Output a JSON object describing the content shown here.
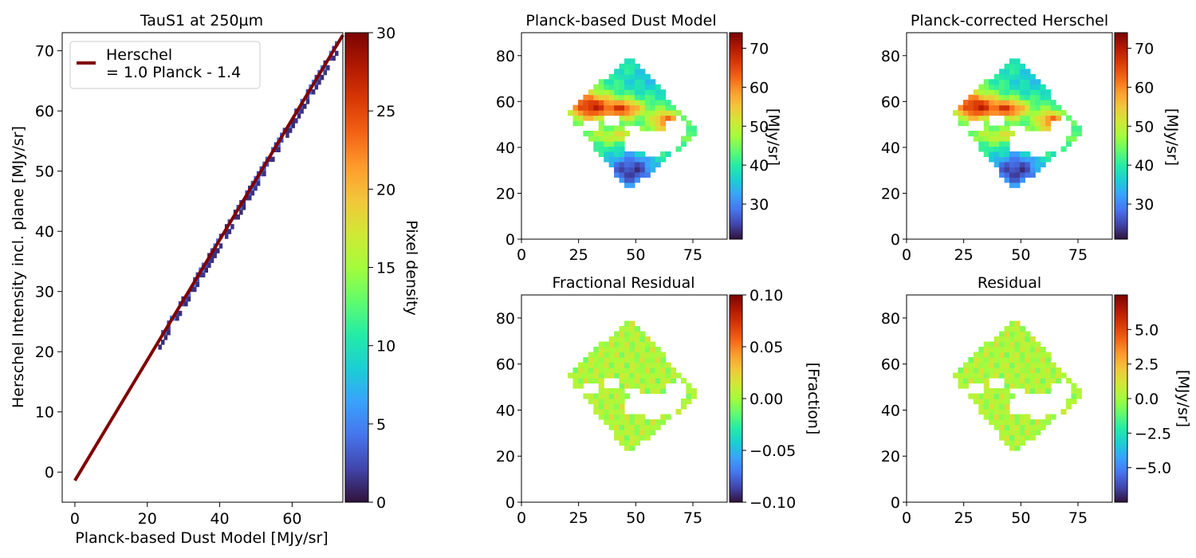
{
  "colors": {
    "fit_line": "#800000",
    "turbo": [
      "#30123b",
      "#4145ab",
      "#4675ed",
      "#39a2fc",
      "#1bcfd4",
      "#24eca6",
      "#61fc6c",
      "#a4fc3b",
      "#d1e834",
      "#f3c63a",
      "#fe9b2d",
      "#f36315",
      "#d93806",
      "#b11901",
      "#7a0403"
    ]
  },
  "chart_data": [
    {
      "id": "scatter",
      "type": "heatmap",
      "title": "TauS1 at 250µm",
      "xlabel": "Planck-based Dust Model [MJy/sr]",
      "ylabel": "Herschel Intensity incl. plane [MJy/sr]",
      "xlim": [
        -3.5,
        74
      ],
      "ylim": [
        -5,
        73
      ],
      "xticks": [
        0,
        20,
        40,
        60
      ],
      "yticks": [
        0,
        10,
        20,
        30,
        40,
        50,
        60,
        70
      ],
      "legend": {
        "location": "upper-left",
        "entries": [
          "Herschel\n= 1.0 Planck - 1.4"
        ]
      },
      "fit": {
        "slope": 1.0,
        "intercept": -1.4,
        "x_range": [
          0,
          74
        ]
      },
      "density_points_x_range": [
        23,
        72
      ],
      "colorbar": {
        "label": "Pixel density",
        "range": [
          0,
          30
        ],
        "ticks": [
          0,
          5,
          10,
          15,
          20,
          25,
          30
        ]
      }
    },
    {
      "id": "dust_model",
      "type": "heatmap",
      "title": "Planck-based Dust Model",
      "xlim": [
        0,
        90
      ],
      "ylim": [
        0,
        90
      ],
      "xticks": [
        0,
        25,
        50,
        75
      ],
      "yticks": [
        0,
        20,
        40,
        60,
        80
      ],
      "colorbar": {
        "label": "[MJy/sr]",
        "range": [
          21,
          74
        ],
        "ticks": [
          30,
          40,
          50,
          60,
          70
        ]
      },
      "map": "intensity"
    },
    {
      "id": "corrected_herschel",
      "type": "heatmap",
      "title": "Planck-corrected Herschel",
      "xlim": [
        0,
        90
      ],
      "ylim": [
        0,
        90
      ],
      "xticks": [
        0,
        25,
        50,
        75
      ],
      "yticks": [
        0,
        20,
        40,
        60,
        80
      ],
      "colorbar": {
        "label": "[MJy/sr]",
        "range": [
          21,
          74
        ],
        "ticks": [
          30,
          40,
          50,
          60,
          70
        ]
      },
      "map": "intensity"
    },
    {
      "id": "fractional_residual",
      "type": "heatmap",
      "title": "Fractional Residual",
      "xlim": [
        0,
        90
      ],
      "ylim": [
        0,
        90
      ],
      "xticks": [
        0,
        25,
        50,
        75
      ],
      "yticks": [
        0,
        20,
        40,
        60,
        80
      ],
      "colorbar": {
        "label": "[Fraction]",
        "range": [
          -0.1,
          0.1
        ],
        "ticks": [
          -0.1,
          -0.05,
          0.0,
          0.05,
          0.1
        ],
        "tick_labels": [
          "−0.10",
          "−0.05",
          "0.00",
          "0.05",
          "0.10"
        ]
      },
      "map": "residual"
    },
    {
      "id": "residual",
      "type": "heatmap",
      "title": "Residual",
      "xlim": [
        0,
        90
      ],
      "ylim": [
        0,
        90
      ],
      "xticks": [
        0,
        25,
        50,
        75
      ],
      "yticks": [
        0,
        20,
        40,
        60,
        80
      ],
      "colorbar": {
        "label": "[MJy/sr]",
        "range": [
          -7.5,
          7.5
        ],
        "ticks": [
          -5,
          -2.5,
          0,
          2.5,
          5
        ],
        "tick_labels": [
          "−5.0",
          "−2.5",
          "0.0",
          "2.5",
          "5.0"
        ]
      },
      "map": "residual"
    }
  ],
  "map_geometry": {
    "diamond_vertices": [
      [
        20,
        55
      ],
      [
        47,
        80
      ],
      [
        78,
        47
      ],
      [
        47,
        21
      ]
    ],
    "hole_region": "central white holes around y 38-50"
  }
}
